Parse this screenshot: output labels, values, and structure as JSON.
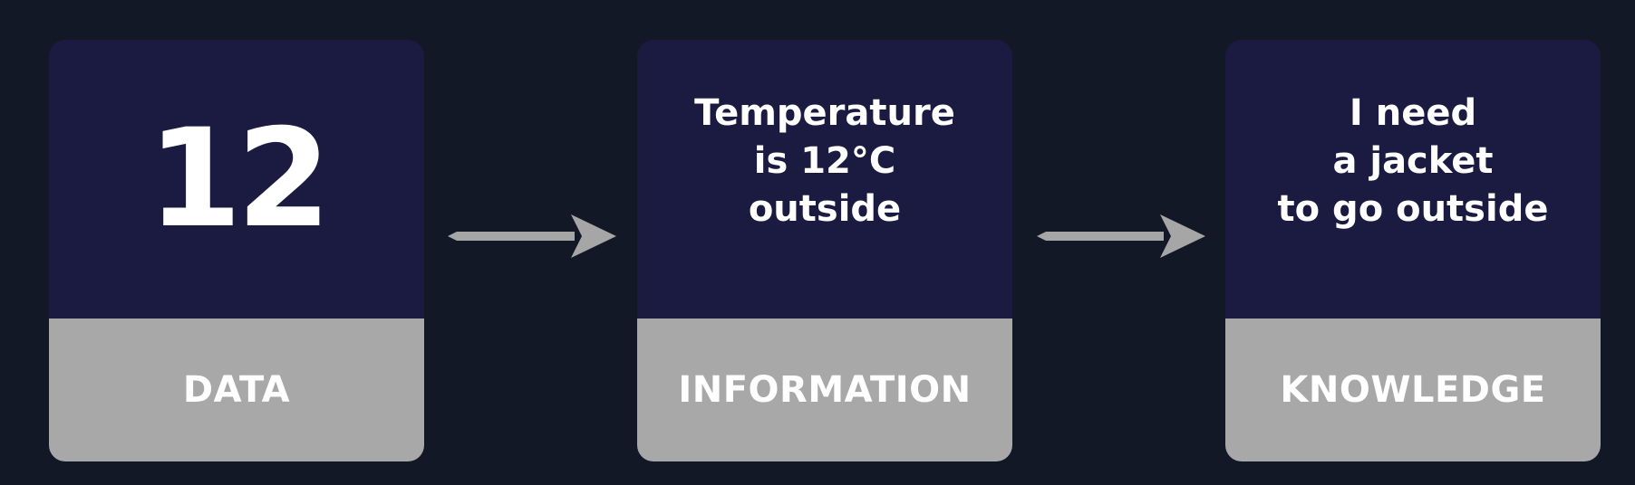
{
  "cards": [
    {
      "main": "12",
      "label": "DATA"
    },
    {
      "lines": [
        "Temperature",
        "is 12°C",
        "outside"
      ],
      "label": "INFORMATION"
    },
    {
      "lines": [
        "I need",
        "a jacket",
        "to go outside"
      ],
      "label": "KNOWLEDGE"
    }
  ],
  "colors": {
    "background": "#131827",
    "card_top": "#1b1a40",
    "card_bottom": "#a8a8a8",
    "arrow": "#a6a6a6",
    "text": "#ffffff"
  }
}
